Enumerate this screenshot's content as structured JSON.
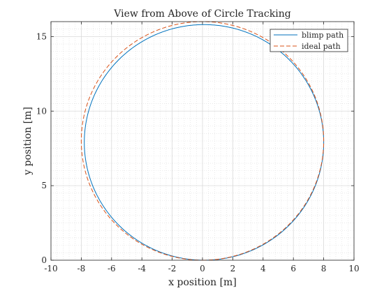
{
  "figure": {
    "background": "#ffffff"
  },
  "chart_data": {
    "type": "line",
    "title": "View from Above of Circle Tracking",
    "xlabel": "x position [m]",
    "ylabel": "y position [m]",
    "xlim": [
      -10,
      10
    ],
    "ylim": [
      0,
      16
    ],
    "xticks": [
      -10,
      -8,
      -6,
      -4,
      -2,
      0,
      2,
      4,
      6,
      8,
      10
    ],
    "yticks": [
      0,
      5,
      10,
      15
    ],
    "xtick_labels": [
      "-10",
      "-8",
      "-6",
      "-4",
      "-2",
      "0",
      "2",
      "4",
      "6",
      "8",
      "10"
    ],
    "ytick_labels": [
      "0",
      "5",
      "10",
      "15"
    ],
    "grid": true,
    "minor_grid": true,
    "legend_position": "top-right",
    "series": [
      {
        "name": "blimp path",
        "color": "#0072BD",
        "style": "solid",
        "shape": "circle",
        "center_x": 0.1,
        "center_y": 7.9,
        "radius": 7.9
      },
      {
        "name": "ideal path",
        "color": "#D95319",
        "style": "dashed",
        "shape": "circle",
        "center_x": 0,
        "center_y": 8,
        "radius": 8
      }
    ]
  }
}
